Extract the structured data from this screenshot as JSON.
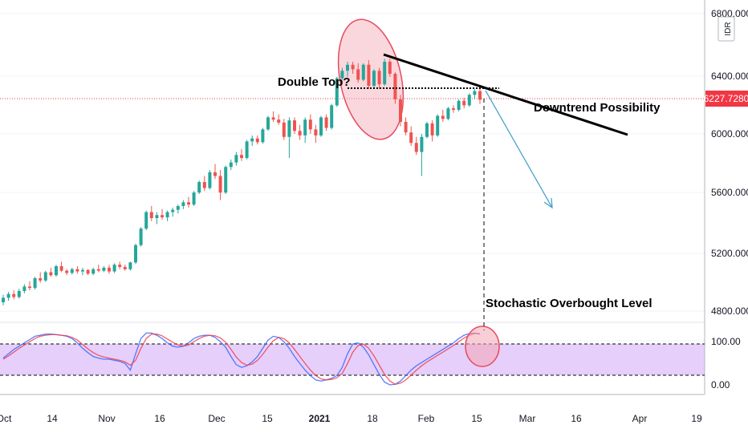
{
  "chart_data": [
    {
      "type": "candlestick",
      "currency_label": "IDR",
      "y_ticks": [
        4800,
        5200,
        5600,
        6000,
        6400,
        6800
      ],
      "y_tick_labels": [
        "4800.0000",
        "5200.0000",
        "5600.0000",
        "6000.0000",
        "6400.0000",
        "6800.0000"
      ],
      "ylim": [
        4670,
        6900
      ],
      "x_tick_labels": [
        "Oct",
        "14",
        "Nov",
        "16",
        "Dec",
        "15",
        "2021",
        "18",
        "Feb",
        "15",
        "Mar",
        "16",
        "Apr",
        "19"
      ],
      "last_price": 6227.728,
      "last_price_label": "6227.7280",
      "colors": {
        "up": "#26a69a",
        "down": "#ef5350",
        "price_line": "#f23645"
      },
      "candles": [
        [
          4880,
          4930,
          4860,
          4910
        ],
        [
          4910,
          4950,
          4890,
          4935
        ],
        [
          4935,
          4960,
          4900,
          4915
        ],
        [
          4915,
          4970,
          4905,
          4955
        ],
        [
          4955,
          5000,
          4940,
          4985
        ],
        [
          4985,
          5020,
          4960,
          4975
        ],
        [
          4975,
          5050,
          4965,
          5040
        ],
        [
          5040,
          5080,
          5010,
          5025
        ],
        [
          5025,
          5090,
          5015,
          5080
        ],
        [
          5080,
          5110,
          5050,
          5060
        ],
        [
          5060,
          5130,
          5050,
          5120
        ],
        [
          5120,
          5150,
          5080,
          5090
        ],
        [
          5090,
          5100,
          5060,
          5075
        ],
        [
          5075,
          5110,
          5065,
          5100
        ],
        [
          5100,
          5120,
          5070,
          5085
        ],
        [
          5085,
          5110,
          5060,
          5095
        ],
        [
          5095,
          5100,
          5060,
          5070
        ],
        [
          5070,
          5110,
          5060,
          5100
        ],
        [
          5100,
          5130,
          5080,
          5090
        ],
        [
          5090,
          5120,
          5080,
          5110
        ],
        [
          5110,
          5130,
          5070,
          5085
        ],
        [
          5085,
          5140,
          5075,
          5130
        ],
        [
          5130,
          5150,
          5100,
          5115
        ],
        [
          5115,
          5130,
          5090,
          5100
        ],
        [
          5100,
          5150,
          5090,
          5145
        ],
        [
          5145,
          5270,
          5135,
          5260
        ],
        [
          5260,
          5380,
          5250,
          5370
        ],
        [
          5370,
          5490,
          5360,
          5480
        ],
        [
          5480,
          5520,
          5420,
          5440
        ],
        [
          5440,
          5480,
          5400,
          5460
        ],
        [
          5460,
          5500,
          5430,
          5445
        ],
        [
          5445,
          5490,
          5420,
          5480
        ],
        [
          5480,
          5510,
          5450,
          5495
        ],
        [
          5495,
          5530,
          5470,
          5520
        ],
        [
          5520,
          5560,
          5500,
          5545
        ],
        [
          5545,
          5580,
          5510,
          5530
        ],
        [
          5530,
          5620,
          5520,
          5610
        ],
        [
          5610,
          5690,
          5600,
          5680
        ],
        [
          5680,
          5720,
          5620,
          5640
        ],
        [
          5640,
          5760,
          5630,
          5745
        ],
        [
          5745,
          5800,
          5700,
          5720
        ],
        [
          5720,
          5760,
          5560,
          5610
        ],
        [
          5610,
          5790,
          5600,
          5780
        ],
        [
          5780,
          5830,
          5760,
          5810
        ],
        [
          5810,
          5880,
          5790,
          5860
        ],
        [
          5860,
          5900,
          5820,
          5840
        ],
        [
          5840,
          5960,
          5830,
          5950
        ],
        [
          5950,
          5990,
          5920,
          5970
        ],
        [
          5970,
          5990,
          5930,
          5945
        ],
        [
          5945,
          6040,
          5935,
          6030
        ],
        [
          6030,
          6120,
          6020,
          6110
        ],
        [
          6110,
          6150,
          6080,
          6095
        ],
        [
          6095,
          6130,
          6060,
          6075
        ],
        [
          6075,
          6100,
          5960,
          5980
        ],
        [
          5980,
          6110,
          5840,
          6090
        ],
        [
          6090,
          6110,
          6000,
          6020
        ],
        [
          6020,
          6060,
          5960,
          5990
        ],
        [
          5990,
          6110,
          5940,
          6095
        ],
        [
          6095,
          6130,
          6000,
          6030
        ],
        [
          6030,
          6060,
          5940,
          5990
        ],
        [
          5990,
          6120,
          5980,
          6110
        ],
        [
          6110,
          6130,
          6020,
          6040
        ],
        [
          6040,
          6200,
          6030,
          6190
        ],
        [
          6190,
          6380,
          6180,
          6370
        ],
        [
          6370,
          6440,
          6360,
          6420
        ],
        [
          6420,
          6480,
          6380,
          6460
        ],
        [
          6460,
          6480,
          6400,
          6430
        ],
        [
          6430,
          6470,
          6340,
          6360
        ],
        [
          6360,
          6470,
          6350,
          6460
        ],
        [
          6460,
          6490,
          6300,
          6320
        ],
        [
          6320,
          6430,
          6310,
          6420
        ],
        [
          6420,
          6440,
          6300,
          6330
        ],
        [
          6330,
          6500,
          6320,
          6480
        ],
        [
          6480,
          6500,
          6380,
          6400
        ],
        [
          6400,
          6410,
          6200,
          6230
        ],
        [
          6230,
          6260,
          6050,
          6080
        ],
        [
          6080,
          6110,
          5990,
          6010
        ],
        [
          6010,
          6050,
          5920,
          5940
        ],
        [
          5940,
          5980,
          5860,
          5880
        ],
        [
          5880,
          6000,
          5720,
          5980
        ],
        [
          5980,
          6080,
          5970,
          6070
        ],
        [
          6070,
          6090,
          5950,
          5990
        ],
        [
          5990,
          6130,
          5980,
          6120
        ],
        [
          6120,
          6160,
          6080,
          6100
        ],
        [
          6100,
          6180,
          6090,
          6170
        ],
        [
          6170,
          6190,
          6140,
          6160
        ],
        [
          6160,
          6230,
          6150,
          6220
        ],
        [
          6220,
          6240,
          6170,
          6190
        ],
        [
          6190,
          6270,
          6180,
          6260
        ],
        [
          6260,
          6300,
          6230,
          6285
        ],
        [
          6285,
          6310,
          6200,
          6228
        ]
      ]
    },
    {
      "type": "line",
      "indicator": "stochastic",
      "y_ticks": [
        0,
        100
      ],
      "y_tick_labels": [
        "0.00",
        "100.00"
      ],
      "ylim": [
        -5,
        108
      ],
      "bands": [
        20,
        80
      ],
      "colors": {
        "k": "#2962ff",
        "d": "#f23645",
        "band_fill": "#d1a7f7"
      },
      "series": [
        {
          "values": [
            52,
            60,
            68,
            74,
            80,
            86,
            92,
            94,
            96,
            96,
            95,
            94,
            92,
            88,
            80,
            70,
            62,
            55,
            52,
            50,
            50,
            48,
            46,
            42,
            30,
            60,
            88,
            98,
            98,
            94,
            88,
            80,
            74,
            72,
            74,
            80,
            88,
            92,
            94,
            94,
            90,
            82,
            72,
            55,
            40,
            35,
            38,
            45,
            55,
            70,
            85,
            92,
            90,
            82,
            70,
            55,
            42,
            30,
            20,
            12,
            10,
            12,
            15,
            20,
            35,
            60,
            78,
            80,
            72,
            58,
            40,
            22,
            8,
            3,
            4,
            10,
            20,
            30,
            38,
            44,
            50,
            56,
            62,
            68,
            74,
            80,
            88,
            94,
            97,
            98,
            96
          ]
        },
        {
          "values": [
            50,
            56,
            63,
            70,
            76,
            82,
            88,
            92,
            94,
            95,
            95,
            94,
            93,
            90,
            85,
            77,
            69,
            62,
            57,
            54,
            52,
            50,
            48,
            45,
            39,
            48,
            70,
            88,
            96,
            96,
            93,
            87,
            81,
            76,
            74,
            76,
            82,
            88,
            92,
            94,
            93,
            89,
            81,
            68,
            54,
            44,
            39,
            41,
            48,
            59,
            72,
            84,
            90,
            88,
            80,
            68,
            55,
            42,
            30,
            20,
            14,
            12,
            13,
            16,
            24,
            42,
            63,
            75,
            78,
            70,
            56,
            39,
            22,
            10,
            4,
            6,
            12,
            21,
            30,
            38,
            45,
            51,
            57,
            63,
            69,
            75,
            82,
            89,
            94,
            97,
            97
          ]
        }
      ]
    }
  ],
  "annotations": {
    "double_top": "Double Top?",
    "downtrend": "Downtrend Possibility",
    "stochastic": "Stochastic Overbought Level"
  }
}
